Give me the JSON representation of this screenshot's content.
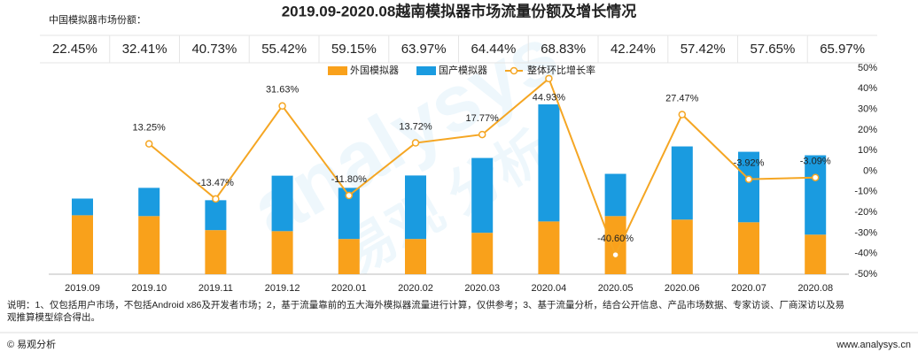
{
  "chart_data": {
    "type": "bar",
    "title": "2019.09-2020.08越南模拟器市场流量份额及增长情况",
    "share_title": "中国模拟器市场份额：",
    "share_cells": [
      "22.45%",
      "32.41%",
      "40.73%",
      "55.42%",
      "59.15%",
      "63.97%",
      "64.44%",
      "68.83%",
      "42.24%",
      "57.42%",
      "57.65%",
      "65.97%"
    ],
    "categories": [
      "2019.09",
      "2019.10",
      "2019.11",
      "2019.12",
      "2020.01",
      "2020.02",
      "2020.03",
      "2020.04",
      "2020.05",
      "2020.06",
      "2020.07",
      "2020.08"
    ],
    "ylim": [
      0,
      100
    ],
    "y2lim": [
      -50,
      50
    ],
    "y2ticks": [
      {
        "value": 50,
        "label": "50%"
      },
      {
        "value": 40,
        "label": "40%"
      },
      {
        "value": 30,
        "label": "30%"
      },
      {
        "value": 20,
        "label": "20%"
      },
      {
        "value": 10,
        "label": "10%"
      },
      {
        "value": 0,
        "label": "0%"
      },
      {
        "value": -10,
        "label": "-10%"
      },
      {
        "value": -20,
        "label": "-20%"
      },
      {
        "value": -30,
        "label": "-30%"
      },
      {
        "value": -40,
        "label": "-40%"
      },
      {
        "value": -50,
        "label": "-50%"
      }
    ],
    "series": [
      {
        "name": "外国模拟器",
        "color": "#f9a11b",
        "stacked": true,
        "values": [
          28.6,
          28.2,
          21.4,
          20.9,
          17.1,
          17.1,
          20.1,
          25.6,
          28.2,
          26.5,
          25.2,
          19.2
        ]
      },
      {
        "name": "国产模拟器",
        "color": "#1a9be0",
        "stacked": true,
        "values": [
          8.1,
          13.7,
          14.5,
          26.9,
          24.8,
          30.8,
          36.3,
          56.8,
          20.5,
          35.5,
          34.2,
          38.5
        ]
      },
      {
        "name": "整体环比增长率",
        "color": "#f5a623",
        "type": "line",
        "axis": "y2",
        "values": [
          null,
          13.25,
          -13.47,
          31.63,
          -11.8,
          13.72,
          17.77,
          44.93,
          -40.6,
          27.47,
          -3.92,
          -3.09
        ],
        "value_labels": [
          null,
          "13.25%",
          "-13.47%",
          "31.63%",
          "-11.80%",
          "13.72%",
          "17.77%",
          "44.93%",
          "-40.60%",
          "27.47%",
          "-3.92%",
          "-3.09%"
        ]
      }
    ],
    "footnote": [
      "说明：1、仅包括用户市场，不包括Android x86及开发者市场；2，基于流量靠前的五大海外模拟器流量进行计算，仅供参考；3、基于流量分析，结合公开信息、产品市场数据、专家访谈、厂商深访以及易",
      "观推算模型综合得出。"
    ],
    "source": "© 易观分析",
    "website": "www.analysys.cn",
    "watermark": [
      "analysys",
      "易观 分析"
    ]
  }
}
